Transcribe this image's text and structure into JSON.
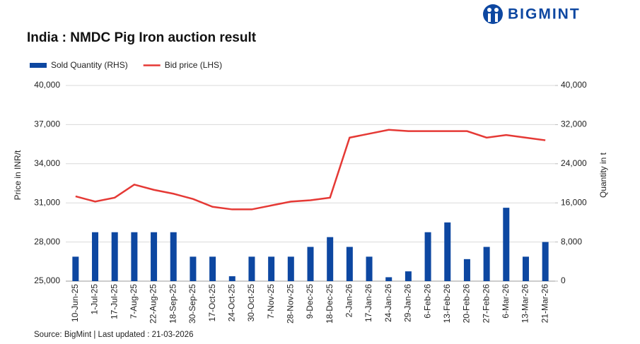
{
  "chart_data": {
    "type": "bar-line",
    "title": "India : NMDC Pig Iron auction result",
    "brand": "BIGMINT",
    "source": "Source: BigMint | Last updated : 21-03-2026",
    "ylabel": "Price in INR/t",
    "y2label": "Quantity in t",
    "legend": "top-left",
    "grid": true,
    "categories": [
      "10-Jun-25",
      "1-Jul-25",
      "17-Jul-25",
      "7-Aug-25",
      "22-Aug-25",
      "18-Sep-25",
      "30-Sep-25",
      "17-Oct-25",
      "24-Oct-25",
      "30-Oct-25",
      "7-Nov-25",
      "28-Nov-25",
      "9-Dec-25",
      "18-Dec-25",
      "2-Jan-26",
      "17-Jan-26",
      "24-Jan-26",
      "29-Jan-26",
      "6-Feb-26",
      "13-Feb-26",
      "20-Feb-26",
      "27-Feb-26",
      "6-Mar-26",
      "13-Mar-26",
      "21-Mar-26"
    ],
    "series": [
      {
        "name": "Sold Quantity (RHS)",
        "type": "bar",
        "axis": "y2",
        "color": "#0d47a1",
        "values": [
          5000,
          10000,
          10000,
          10000,
          10000,
          10000,
          5000,
          5000,
          1000,
          5000,
          5000,
          5000,
          7000,
          9000,
          7000,
          5000,
          800,
          2000,
          10000,
          12000,
          4500,
          7000,
          15000,
          5000,
          8000
        ]
      },
      {
        "name": "Bid price (LHS)",
        "type": "line",
        "color": "#e53935",
        "values": [
          31500,
          31100,
          31400,
          32400,
          32000,
          31700,
          31300,
          30700,
          30500,
          30500,
          30800,
          31100,
          31200,
          31400,
          36000,
          36300,
          36600,
          36500,
          36500,
          36500,
          36500,
          36000,
          36200,
          36000,
          35800
        ]
      }
    ],
    "ylim": [
      25000,
      40000
    ],
    "yticks": [
      {
        "value": 25000,
        "label": "25,000"
      },
      {
        "value": 28000,
        "label": "28,000"
      },
      {
        "value": 31000,
        "label": "31,000"
      },
      {
        "value": 34000,
        "label": "34,000"
      },
      {
        "value": 37000,
        "label": "37,000"
      },
      {
        "value": 40000,
        "label": "40,000"
      }
    ],
    "y2lim": [
      0,
      40000
    ],
    "y2ticks": [
      0,
      {
        "value": 8000,
        "label": "8,000"
      },
      {
        "value": 16000,
        "label": "16,000"
      },
      {
        "value": 24000,
        "label": "24,000"
      },
      {
        "value": 32000,
        "label": "32,000"
      },
      {
        "value": 40000,
        "label": "40,000"
      }
    ]
  }
}
